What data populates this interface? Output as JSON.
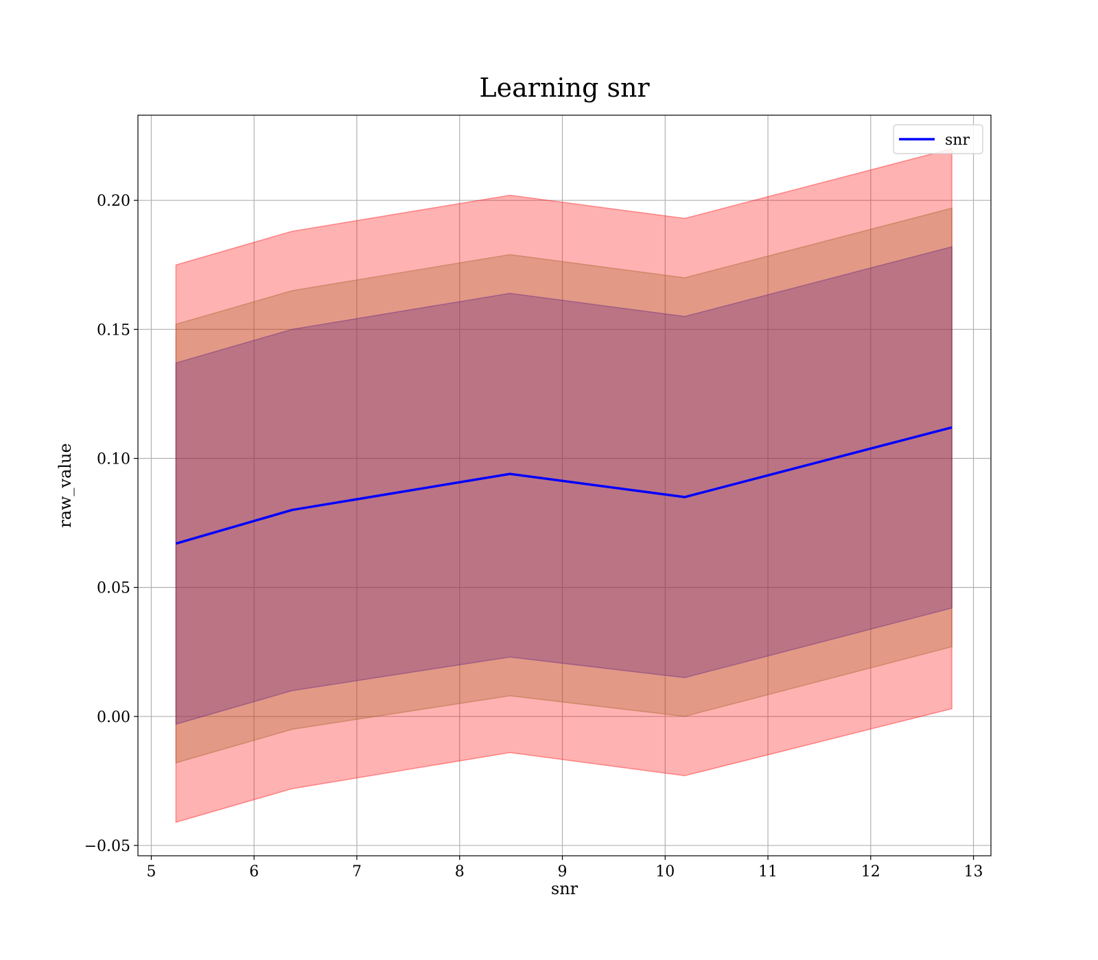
{
  "chart_data": {
    "type": "line",
    "title": "Learning snr",
    "xlabel": "snr",
    "ylabel": "raw_value",
    "xlim": [
      4.87,
      13.17
    ],
    "ylim": [
      -0.054,
      0.233
    ],
    "xticks": [
      5,
      6,
      7,
      8,
      9,
      10,
      11,
      12,
      13
    ],
    "yticks": [
      -0.05,
      0.0,
      0.05,
      0.1,
      0.15,
      0.2
    ],
    "ytick_labels": [
      "−0.05",
      "0.00",
      "0.05",
      "0.10",
      "0.15",
      "0.20"
    ],
    "grid": true,
    "legend_position": "top-right",
    "x": [
      5.24,
      6.37,
      8.49,
      10.19,
      12.79
    ],
    "series": [
      {
        "name": "snr",
        "values": [
          0.067,
          0.08,
          0.094,
          0.085,
          0.112
        ],
        "color": "#0000ff"
      }
    ],
    "bands": [
      {
        "lower": [
          -0.041,
          -0.028,
          -0.014,
          -0.023,
          0.003
        ],
        "upper": [
          0.175,
          0.188,
          0.202,
          0.193,
          0.22
        ],
        "color": "#ff0000",
        "opacity": 0.3
      },
      {
        "lower": [
          -0.018,
          -0.005,
          0.008,
          0.0,
          0.027
        ],
        "upper": [
          0.152,
          0.165,
          0.179,
          0.17,
          0.197
        ],
        "color": "#a06020",
        "opacity": 0.3
      },
      {
        "lower": [
          -0.003,
          0.01,
          0.023,
          0.015,
          0.042
        ],
        "upper": [
          0.137,
          0.15,
          0.164,
          0.155,
          0.182
        ],
        "color": "#602080",
        "opacity": 0.3
      }
    ]
  }
}
